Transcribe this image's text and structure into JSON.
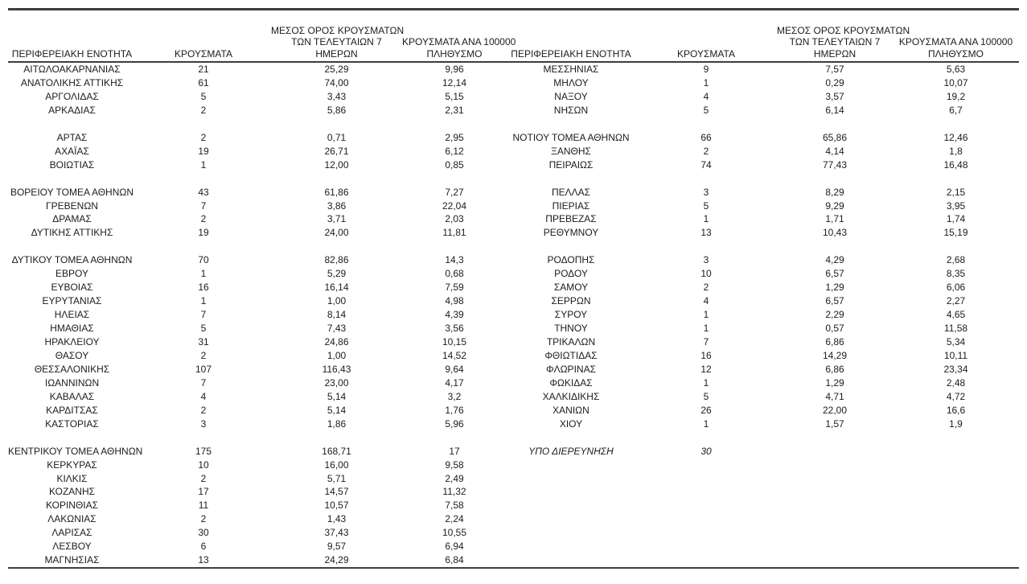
{
  "page": {
    "background": "#ffffff",
    "text_color": "#1c1c1c",
    "rule_color": "#3d3d3d"
  },
  "table": {
    "headers": {
      "region": "ΠΕΡΙΦΕΡΕΙΑΚΗ ΕΝΟΤΗΤΑ",
      "cases": "ΚΡΟΥΣΜΑΤΑ",
      "avg7_lines": [
        "ΜΕΣΟΣ ΟΡΟΣ ΚΡΟΥΣΜΑΤΩΝ",
        "ΤΩΝ ΤΕΛΕΥΤΑΙΩΝ 7",
        "ΗΜΕΡΩΝ"
      ],
      "per100k_lines": [
        "ΚΡΟΥΣΜΑΤΑ ΑΝΑ 100000",
        "ΠΛΗΘΥΣΜΟ"
      ]
    },
    "rows": [
      {
        "left": [
          "ΑΙΤΩΛΟΑΚΑΡΝΑΝΙΑΣ",
          "21",
          "25,29",
          "9,96"
        ],
        "right": [
          "ΜΕΣΣΗΝΙΑΣ",
          "9",
          "7,57",
          "5,63"
        ]
      },
      {
        "left": [
          "ΑΝΑΤΟΛΙΚΗΣ ΑΤΤΙΚΗΣ",
          "61",
          "74,00",
          "12,14"
        ],
        "right": [
          "ΜΗΛΟΥ",
          "1",
          "0,29",
          "10,07"
        ]
      },
      {
        "left": [
          "ΑΡΓΟΛΙΔΑΣ",
          "5",
          "3,43",
          "5,15"
        ],
        "right": [
          "ΝΑΞΟΥ",
          "4",
          "3,57",
          "19,2"
        ]
      },
      {
        "left": [
          "ΑΡΚΑΔΙΑΣ",
          "2",
          "5,86",
          "2,31"
        ],
        "right": [
          "ΝΗΣΩΝ",
          "5",
          "6,14",
          "6,7"
        ]
      },
      {
        "blank": true
      },
      {
        "left": [
          "ΑΡΤΑΣ",
          "2",
          "0,71",
          "2,95"
        ],
        "right": [
          "ΝΟΤΙΟΥ ΤΟΜΕΑ ΑΘΗΝΩΝ",
          "66",
          "65,86",
          "12,46"
        ]
      },
      {
        "left": [
          "ΑΧΑΪΑΣ",
          "19",
          "26,71",
          "6,12"
        ],
        "right": [
          "ΞΑΝΘΗΣ",
          "2",
          "4,14",
          "1,8"
        ]
      },
      {
        "left": [
          "ΒΟΙΩΤΙΑΣ",
          "1",
          "12,00",
          "0,85"
        ],
        "right": [
          "ΠΕΙΡΑΙΩΣ",
          "74",
          "77,43",
          "16,48"
        ]
      },
      {
        "blank": true
      },
      {
        "left": [
          "ΒΟΡΕΙΟΥ ΤΟΜΕΑ ΑΘΗΝΩΝ",
          "43",
          "61,86",
          "7,27"
        ],
        "right": [
          "ΠΕΛΛΑΣ",
          "3",
          "8,29",
          "2,15"
        ]
      },
      {
        "left": [
          "ΓΡΕΒΕΝΩΝ",
          "7",
          "3,86",
          "22,04"
        ],
        "right": [
          "ΠΙΕΡΙΑΣ",
          "5",
          "9,29",
          "3,95"
        ]
      },
      {
        "left": [
          "ΔΡΑΜΑΣ",
          "2",
          "3,71",
          "2,03"
        ],
        "right": [
          "ΠΡΕΒΕΖΑΣ",
          "1",
          "1,71",
          "1,74"
        ]
      },
      {
        "left": [
          "ΔΥΤΙΚΗΣ ΑΤΤΙΚΗΣ",
          "19",
          "24,00",
          "11,81"
        ],
        "right": [
          "ΡΕΘΥΜΝΟΥ",
          "13",
          "10,43",
          "15,19"
        ]
      },
      {
        "blank": true
      },
      {
        "left": [
          "ΔΥΤΙΚΟΥ ΤΟΜΕΑ ΑΘΗΝΩΝ",
          "70",
          "82,86",
          "14,3"
        ],
        "right": [
          "ΡΟΔΟΠΗΣ",
          "3",
          "4,29",
          "2,68"
        ]
      },
      {
        "left": [
          "ΕΒΡΟΥ",
          "1",
          "5,29",
          "0,68"
        ],
        "right": [
          "ΡΟΔΟΥ",
          "10",
          "6,57",
          "8,35"
        ]
      },
      {
        "left": [
          "ΕΥΒΟΙΑΣ",
          "16",
          "16,14",
          "7,59"
        ],
        "right": [
          "ΣΑΜΟΥ",
          "2",
          "1,29",
          "6,06"
        ]
      },
      {
        "left": [
          "ΕΥΡΥΤΑΝΙΑΣ",
          "1",
          "1,00",
          "4,98"
        ],
        "right": [
          "ΣΕΡΡΩΝ",
          "4",
          "6,57",
          "2,27"
        ]
      },
      {
        "left": [
          "ΗΛΕΙΑΣ",
          "7",
          "8,14",
          "4,39"
        ],
        "right": [
          "ΣΥΡΟΥ",
          "1",
          "2,29",
          "4,65"
        ]
      },
      {
        "left": [
          "ΗΜΑΘΙΑΣ",
          "5",
          "7,43",
          "3,56"
        ],
        "right": [
          "ΤΗΝΟΥ",
          "1",
          "0,57",
          "11,58"
        ]
      },
      {
        "left": [
          "ΗΡΑΚΛΕΙΟΥ",
          "31",
          "24,86",
          "10,15"
        ],
        "right": [
          "ΤΡΙΚΑΛΩΝ",
          "7",
          "6,86",
          "5,34"
        ]
      },
      {
        "left": [
          "ΘΑΣΟΥ",
          "2",
          "1,00",
          "14,52"
        ],
        "right": [
          "ΦΘΙΩΤΙΔΑΣ",
          "16",
          "14,29",
          "10,11"
        ]
      },
      {
        "left": [
          "ΘΕΣΣΑΛΟΝΙΚΗΣ",
          "107",
          "116,43",
          "9,64"
        ],
        "right": [
          "ΦΛΩΡΙΝΑΣ",
          "12",
          "6,86",
          "23,34"
        ]
      },
      {
        "left": [
          "ΙΩΑΝΝΙΝΩΝ",
          "7",
          "23,00",
          "4,17"
        ],
        "right": [
          "ΦΩΚΙΔΑΣ",
          "1",
          "1,29",
          "2,48"
        ]
      },
      {
        "left": [
          "ΚΑΒΑΛΑΣ",
          "4",
          "5,14",
          "3,2"
        ],
        "right": [
          "ΧΑΛΚΙΔΙΚΗΣ",
          "5",
          "4,71",
          "4,72"
        ]
      },
      {
        "left": [
          "ΚΑΡΔΙΤΣΑΣ",
          "2",
          "5,14",
          "1,76"
        ],
        "right": [
          "ΧΑΝΙΩΝ",
          "26",
          "22,00",
          "16,6"
        ]
      },
      {
        "left": [
          "ΚΑΣΤΟΡΙΑΣ",
          "3",
          "1,86",
          "5,96"
        ],
        "right": [
          "ΧΙΟΥ",
          "1",
          "1,57",
          "1,9"
        ]
      },
      {
        "blank": true
      },
      {
        "left": [
          "ΚΕΝΤΡΙΚΟΥ ΤΟΜΕΑ ΑΘΗΝΩΝ",
          "175",
          "168,71",
          "17"
        ],
        "right": [
          "ΥΠΟ ΔΙΕΡΕΥΝΗΣΗ",
          "30",
          "",
          ""
        ],
        "right_style": "italic"
      },
      {
        "left": [
          "ΚΕΡΚΥΡΑΣ",
          "10",
          "16,00",
          "9,58"
        ],
        "right": null
      },
      {
        "left": [
          "ΚΙΛΚΙΣ",
          "2",
          "5,71",
          "2,49"
        ],
        "right": null
      },
      {
        "left": [
          "ΚΟΖΑΝΗΣ",
          "17",
          "14,57",
          "11,32"
        ],
        "right": null
      },
      {
        "left": [
          "ΚΟΡΙΝΘΙΑΣ",
          "11",
          "10,57",
          "7,58"
        ],
        "right": null
      },
      {
        "left": [
          "ΛΑΚΩΝΙΑΣ",
          "2",
          "1,43",
          "2,24"
        ],
        "right": null
      },
      {
        "left": [
          "ΛΑΡΙΣΑΣ",
          "30",
          "37,43",
          "10,55"
        ],
        "right": null
      },
      {
        "left": [
          "ΛΕΣΒΟΥ",
          "6",
          "9,57",
          "6,94"
        ],
        "right": null
      },
      {
        "left": [
          "ΜΑΓΝΗΣΙΑΣ",
          "13",
          "24,29",
          "6,84"
        ],
        "right": null
      }
    ]
  }
}
